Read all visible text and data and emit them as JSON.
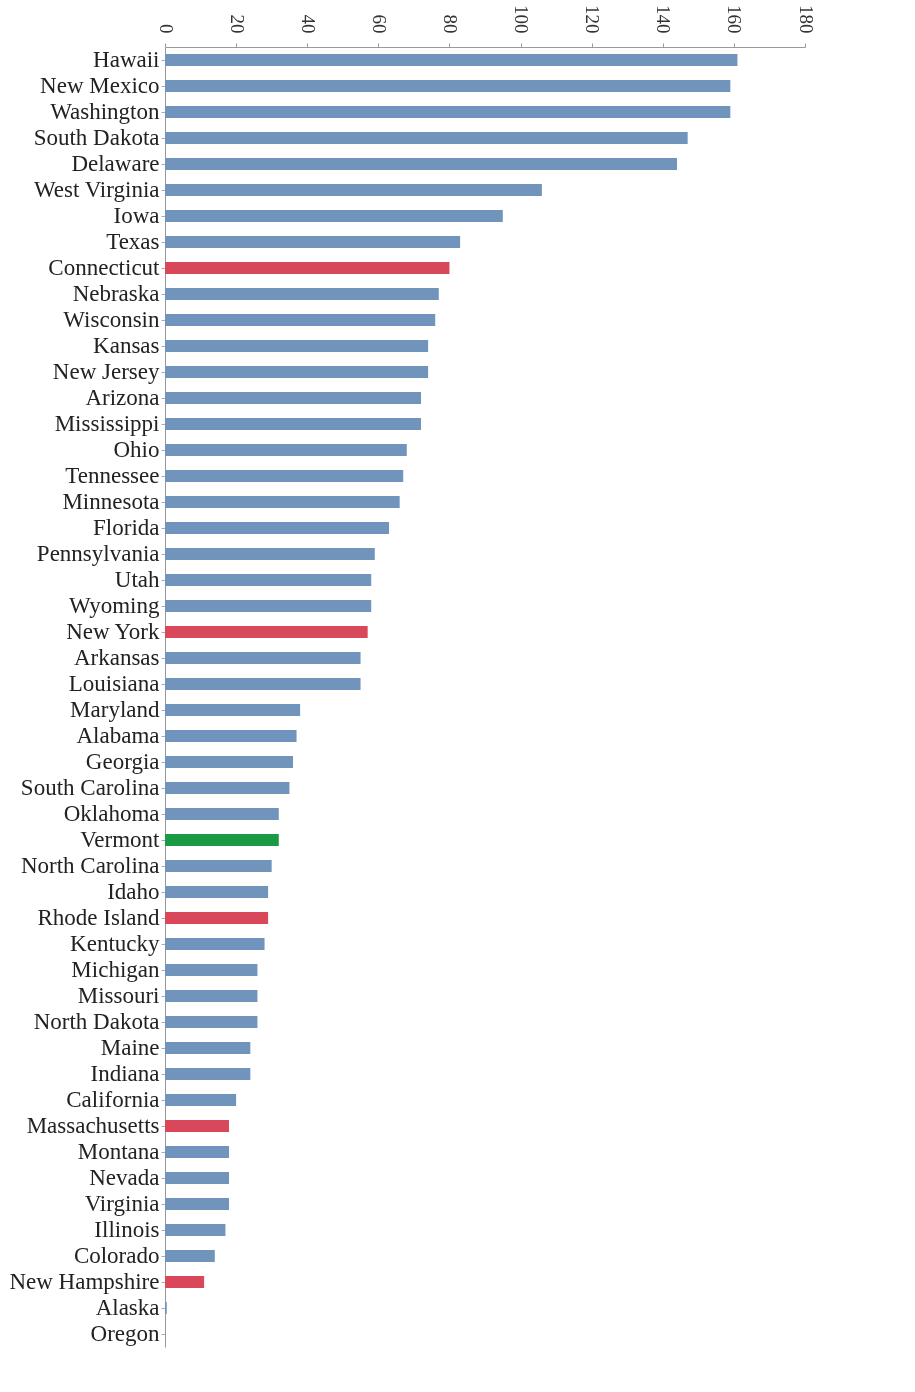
{
  "chart_data": {
    "type": "bar",
    "orientation": "horizontal",
    "categories": [
      "Hawaii",
      "New Mexico",
      "Washington",
      "South Dakota",
      "Delaware",
      "West Virginia",
      "Iowa",
      "Texas",
      "Connecticut",
      "Nebraska",
      "Wisconsin",
      "Kansas",
      "New Jersey",
      "Arizona",
      "Mississippi",
      "Ohio",
      "Tennessee",
      "Minnesota",
      "Florida",
      "Pennsylvania",
      "Utah",
      "Wyoming",
      "New York",
      "Arkansas",
      "Louisiana",
      "Maryland",
      "Alabama",
      "Georgia",
      "South Carolina",
      "Oklahoma",
      "Vermont",
      "North Carolina",
      "Idaho",
      "Rhode Island",
      "Kentucky",
      "Michigan",
      "Missouri",
      "North Dakota",
      "Maine",
      "Indiana",
      "California",
      "Massachusetts",
      "Montana",
      "Nevada",
      "Virginia",
      "Illinois",
      "Colorado",
      "New Hampshire",
      "Alaska",
      "Oregon"
    ],
    "values": [
      161,
      159,
      159,
      147,
      144,
      106,
      95,
      83,
      80,
      77,
      76,
      74,
      74,
      72,
      72,
      68,
      67,
      66,
      63,
      59,
      58,
      58,
      57,
      55,
      55,
      38,
      37,
      36,
      35,
      32,
      32,
      30,
      29,
      29,
      28,
      26,
      26,
      26,
      24,
      24,
      20,
      18,
      18,
      18,
      18,
      17,
      14,
      11,
      0.5,
      0
    ],
    "colors": [
      "#7094bb",
      "#7094bb",
      "#7094bb",
      "#7094bb",
      "#7094bb",
      "#7094bb",
      "#7094bb",
      "#7094bb",
      "#d9475a",
      "#7094bb",
      "#7094bb",
      "#7094bb",
      "#7094bb",
      "#7094bb",
      "#7094bb",
      "#7094bb",
      "#7094bb",
      "#7094bb",
      "#7094bb",
      "#7094bb",
      "#7094bb",
      "#7094bb",
      "#d9475a",
      "#7094bb",
      "#7094bb",
      "#7094bb",
      "#7094bb",
      "#7094bb",
      "#7094bb",
      "#7094bb",
      "#1a9a44",
      "#7094bb",
      "#7094bb",
      "#d9475a",
      "#7094bb",
      "#7094bb",
      "#7094bb",
      "#7094bb",
      "#7094bb",
      "#7094bb",
      "#7094bb",
      "#d9475a",
      "#7094bb",
      "#7094bb",
      "#7094bb",
      "#7094bb",
      "#7094bb",
      "#d9475a",
      "#7094bb",
      "#7094bb"
    ],
    "xlim": [
      0,
      180
    ],
    "xticks": [
      0,
      20,
      40,
      60,
      80,
      100,
      120,
      140,
      160,
      180
    ]
  }
}
